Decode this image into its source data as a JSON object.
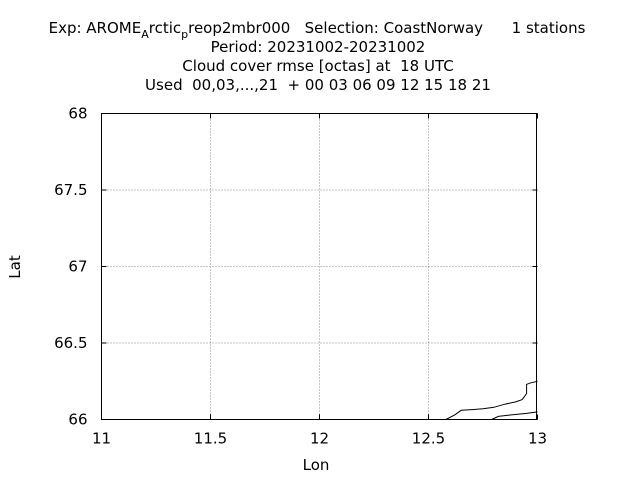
{
  "chart_data": {
    "type": "line",
    "title_lines": [
      "Exp: AROME_Arctic_preop2mbr000   Selection: CoastNorway      1 stations",
      "Period: 20231002-20231002",
      "Cloud cover rmse [octas] at  18 UTC",
      "Used  00,03,...,21  + 00 03 06 09 12 15 18 21"
    ],
    "title": {
      "exp_prefix": "Exp: AROME",
      "exp_sub1": "A",
      "exp_mid": "rctic",
      "exp_sub2": "p",
      "exp_suffix": "reop2mbr000   Selection: CoastNorway      1 stations",
      "period": "Period: 20231002-20231002",
      "parameter": "Cloud cover rmse [octas] at  18 UTC",
      "used": "Used  00,03,...,21  + 00 03 06 09 12 15 18 21"
    },
    "xlabel": "Lon",
    "ylabel": "Lat",
    "xlim": [
      11,
      13
    ],
    "ylim": [
      66,
      68
    ],
    "xticks": [
      11,
      11.5,
      12,
      12.5,
      13
    ],
    "yticks": [
      66,
      66.5,
      67,
      67.5,
      68
    ],
    "xtick_labels": [
      "11",
      "11.5",
      "12",
      "12.5",
      "13"
    ],
    "ytick_labels": [
      "66",
      "66.5",
      "67",
      "67.5",
      "68"
    ],
    "grid": true,
    "series": [
      {
        "x": [
          12.58,
          12.62,
          12.65,
          12.7,
          12.75,
          12.8,
          12.85,
          12.9,
          12.93,
          12.95,
          12.95,
          12.97,
          13.0
        ],
        "y": [
          66.0,
          66.03,
          66.06,
          66.065,
          66.07,
          66.08,
          66.1,
          66.115,
          66.13,
          66.17,
          66.23,
          66.24,
          66.25
        ]
      },
      {
        "x": [
          12.79,
          12.82,
          12.88,
          12.95,
          13.0
        ],
        "y": [
          66.0,
          66.02,
          66.03,
          66.04,
          66.05
        ]
      }
    ],
    "colors": {
      "line": "#000000",
      "grid": "#8c8c8c"
    }
  }
}
